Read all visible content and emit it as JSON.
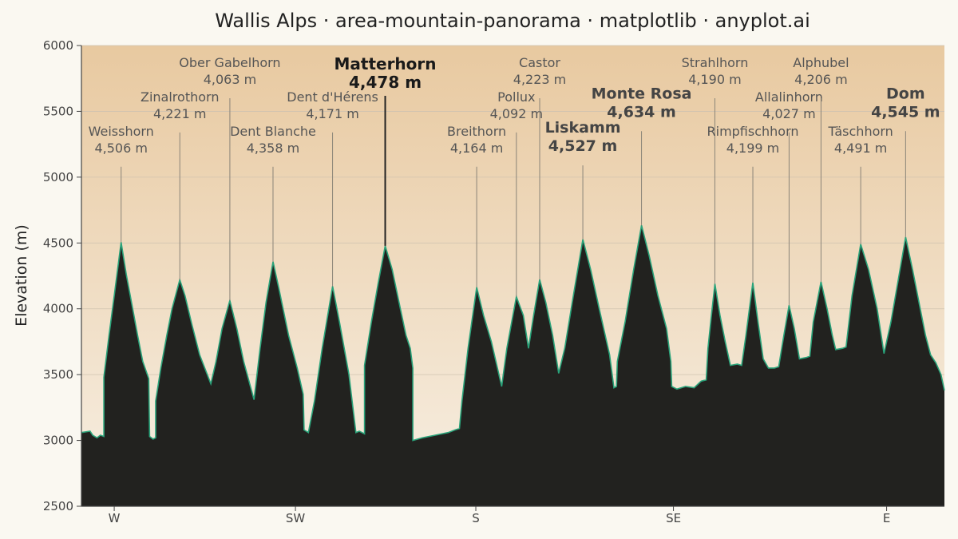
{
  "chart_data": {
    "type": "area",
    "title": "Wallis Alps · area-mountain-panorama · matplotlib · anyplot.ai",
    "xlabel": "",
    "ylabel": "Elevation (m)",
    "ylim": [
      2500,
      6000
    ],
    "y_ticks": [
      2500,
      3000,
      3500,
      4000,
      4500,
      5000,
      5500,
      6000
    ],
    "xlim": [
      0,
      1
    ],
    "x_ticks": [
      {
        "x": 0.038,
        "label": "W"
      },
      {
        "x": 0.248,
        "label": "SW"
      },
      {
        "x": 0.457,
        "label": "S"
      },
      {
        "x": 0.686,
        "label": "SE"
      },
      {
        "x": 0.933,
        "label": "E"
      }
    ],
    "grid": true,
    "colors": {
      "sky_top": "#e8c9a0",
      "sky_bottom": "#f7efe3",
      "mountain_fill": "#22221f",
      "ridge_line": "#2aa37a",
      "grid": "#cfc3b0",
      "axis": "#444444"
    },
    "peaks": [
      {
        "name": "Weisshorn",
        "elevation": 4506,
        "elevation_label": "4,506 m",
        "x": 0.046,
        "label_elev": 5140,
        "style": "normal"
      },
      {
        "name": "Zinalrothorn",
        "elevation": 4221,
        "elevation_label": "4,221 m",
        "x": 0.114,
        "label_elev": 5400,
        "style": "normal"
      },
      {
        "name": "Ober Gabelhorn",
        "elevation": 4063,
        "elevation_label": "4,063 m",
        "x": 0.172,
        "label_elev": 5660,
        "style": "normal"
      },
      {
        "name": "Dent Blanche",
        "elevation": 4358,
        "elevation_label": "4,358 m",
        "x": 0.222,
        "label_elev": 5140,
        "style": "normal"
      },
      {
        "name": "Dent d'Hérens",
        "elevation": 4171,
        "elevation_label": "4,171 m",
        "x": 0.291,
        "label_elev": 5400,
        "style": "normal"
      },
      {
        "name": "Matterhorn",
        "elevation": 4478,
        "elevation_label": "4,478 m",
        "x": 0.352,
        "label_elev": 5630,
        "style": "featured"
      },
      {
        "name": "Breithorn",
        "elevation": 4164,
        "elevation_label": "4,164 m",
        "x": 0.458,
        "label_elev": 5140,
        "style": "normal"
      },
      {
        "name": "Pollux",
        "elevation": 4092,
        "elevation_label": "4,092 m",
        "x": 0.504,
        "label_elev": 5400,
        "style": "normal"
      },
      {
        "name": "Castor",
        "elevation": 4223,
        "elevation_label": "4,223 m",
        "x": 0.531,
        "label_elev": 5660,
        "style": "normal"
      },
      {
        "name": "Liskamm",
        "elevation": 4527,
        "elevation_label": "4,527 m",
        "x": 0.581,
        "label_elev": 5150,
        "style": "major"
      },
      {
        "name": "Monte Rosa",
        "elevation": 4634,
        "elevation_label": "4,634 m",
        "x": 0.649,
        "label_elev": 5410,
        "style": "major"
      },
      {
        "name": "Strahlhorn",
        "elevation": 4190,
        "elevation_label": "4,190 m",
        "x": 0.734,
        "label_elev": 5660,
        "style": "normal"
      },
      {
        "name": "Rimpfischhorn",
        "elevation": 4199,
        "elevation_label": "4,199 m",
        "x": 0.778,
        "label_elev": 5140,
        "style": "normal"
      },
      {
        "name": "Allalinhorn",
        "elevation": 4027,
        "elevation_label": "4,027 m",
        "x": 0.82,
        "label_elev": 5400,
        "style": "normal"
      },
      {
        "name": "Alphubel",
        "elevation": 4206,
        "elevation_label": "4,206 m",
        "x": 0.857,
        "label_elev": 5660,
        "style": "normal"
      },
      {
        "name": "Täschhorn",
        "elevation": 4491,
        "elevation_label": "4,491 m",
        "x": 0.903,
        "label_elev": 5140,
        "style": "normal"
      },
      {
        "name": "Dom",
        "elevation": 4545,
        "elevation_label": "4,545 m",
        "x": 0.955,
        "label_elev": 5410,
        "style": "major"
      }
    ],
    "profile": [
      [
        0.0,
        3060
      ],
      [
        0.01,
        3070
      ],
      [
        0.013,
        3040
      ],
      [
        0.018,
        3020
      ],
      [
        0.022,
        3040
      ],
      [
        0.026,
        3030
      ],
      [
        0.026,
        3480
      ],
      [
        0.032,
        3800
      ],
      [
        0.038,
        4100
      ],
      [
        0.046,
        4506
      ],
      [
        0.052,
        4260
      ],
      [
        0.058,
        4050
      ],
      [
        0.065,
        3800
      ],
      [
        0.071,
        3600
      ],
      [
        0.078,
        3470
      ],
      [
        0.079,
        3030
      ],
      [
        0.083,
        3010
      ],
      [
        0.086,
        3020
      ],
      [
        0.086,
        3300
      ],
      [
        0.092,
        3550
      ],
      [
        0.099,
        3800
      ],
      [
        0.105,
        4000
      ],
      [
        0.114,
        4221
      ],
      [
        0.12,
        4100
      ],
      [
        0.128,
        3880
      ],
      [
        0.137,
        3650
      ],
      [
        0.15,
        3430
      ],
      [
        0.156,
        3600
      ],
      [
        0.163,
        3850
      ],
      [
        0.172,
        4063
      ],
      [
        0.18,
        3850
      ],
      [
        0.188,
        3600
      ],
      [
        0.2,
        3310
      ],
      [
        0.207,
        3700
      ],
      [
        0.214,
        4050
      ],
      [
        0.222,
        4358
      ],
      [
        0.229,
        4150
      ],
      [
        0.24,
        3800
      ],
      [
        0.25,
        3550
      ],
      [
        0.257,
        3350
      ],
      [
        0.258,
        3080
      ],
      [
        0.263,
        3060
      ],
      [
        0.27,
        3300
      ],
      [
        0.279,
        3700
      ],
      [
        0.291,
        4171
      ],
      [
        0.299,
        3900
      ],
      [
        0.31,
        3500
      ],
      [
        0.318,
        3060
      ],
      [
        0.322,
        3070
      ],
      [
        0.328,
        3050
      ],
      [
        0.328,
        3570
      ],
      [
        0.336,
        3900
      ],
      [
        0.344,
        4200
      ],
      [
        0.352,
        4478
      ],
      [
        0.36,
        4300
      ],
      [
        0.368,
        4050
      ],
      [
        0.376,
        3800
      ],
      [
        0.381,
        3700
      ],
      [
        0.384,
        3550
      ],
      [
        0.384,
        3000
      ],
      [
        0.395,
        3020
      ],
      [
        0.41,
        3040
      ],
      [
        0.425,
        3060
      ],
      [
        0.433,
        3080
      ],
      [
        0.438,
        3090
      ],
      [
        0.441,
        3300
      ],
      [
        0.448,
        3700
      ],
      [
        0.458,
        4164
      ],
      [
        0.466,
        3950
      ],
      [
        0.475,
        3750
      ],
      [
        0.487,
        3410
      ],
      [
        0.493,
        3700
      ],
      [
        0.504,
        4092
      ],
      [
        0.512,
        3950
      ],
      [
        0.518,
        3700
      ],
      [
        0.524,
        3950
      ],
      [
        0.531,
        4223
      ],
      [
        0.538,
        4050
      ],
      [
        0.546,
        3800
      ],
      [
        0.553,
        3510
      ],
      [
        0.56,
        3700
      ],
      [
        0.57,
        4100
      ],
      [
        0.581,
        4527
      ],
      [
        0.59,
        4300
      ],
      [
        0.6,
        4000
      ],
      [
        0.612,
        3650
      ],
      [
        0.617,
        3400
      ],
      [
        0.62,
        3410
      ],
      [
        0.621,
        3600
      ],
      [
        0.63,
        3900
      ],
      [
        0.64,
        4300
      ],
      [
        0.649,
        4634
      ],
      [
        0.658,
        4400
      ],
      [
        0.668,
        4100
      ],
      [
        0.678,
        3850
      ],
      [
        0.683,
        3600
      ],
      [
        0.684,
        3410
      ],
      [
        0.69,
        3390
      ],
      [
        0.7,
        3410
      ],
      [
        0.71,
        3400
      ],
      [
        0.718,
        3450
      ],
      [
        0.724,
        3460
      ],
      [
        0.726,
        3700
      ],
      [
        0.73,
        3950
      ],
      [
        0.734,
        4190
      ],
      [
        0.74,
        3950
      ],
      [
        0.746,
        3750
      ],
      [
        0.752,
        3570
      ],
      [
        0.76,
        3580
      ],
      [
        0.765,
        3570
      ],
      [
        0.77,
        3800
      ],
      [
        0.778,
        4199
      ],
      [
        0.784,
        3900
      ],
      [
        0.79,
        3620
      ],
      [
        0.796,
        3550
      ],
      [
        0.803,
        3550
      ],
      [
        0.808,
        3560
      ],
      [
        0.814,
        3800
      ],
      [
        0.82,
        4027
      ],
      [
        0.826,
        3850
      ],
      [
        0.832,
        3620
      ],
      [
        0.84,
        3630
      ],
      [
        0.844,
        3640
      ],
      [
        0.848,
        3900
      ],
      [
        0.857,
        4206
      ],
      [
        0.864,
        4000
      ],
      [
        0.87,
        3800
      ],
      [
        0.874,
        3690
      ],
      [
        0.882,
        3700
      ],
      [
        0.886,
        3710
      ],
      [
        0.893,
        4100
      ],
      [
        0.903,
        4491
      ],
      [
        0.912,
        4300
      ],
      [
        0.922,
        4000
      ],
      [
        0.93,
        3660
      ],
      [
        0.938,
        3900
      ],
      [
        0.946,
        4200
      ],
      [
        0.955,
        4545
      ],
      [
        0.963,
        4300
      ],
      [
        0.972,
        4000
      ],
      [
        0.978,
        3800
      ],
      [
        0.984,
        3650
      ],
      [
        0.99,
        3590
      ],
      [
        0.996,
        3500
      ],
      [
        1.0,
        3380
      ]
    ]
  }
}
